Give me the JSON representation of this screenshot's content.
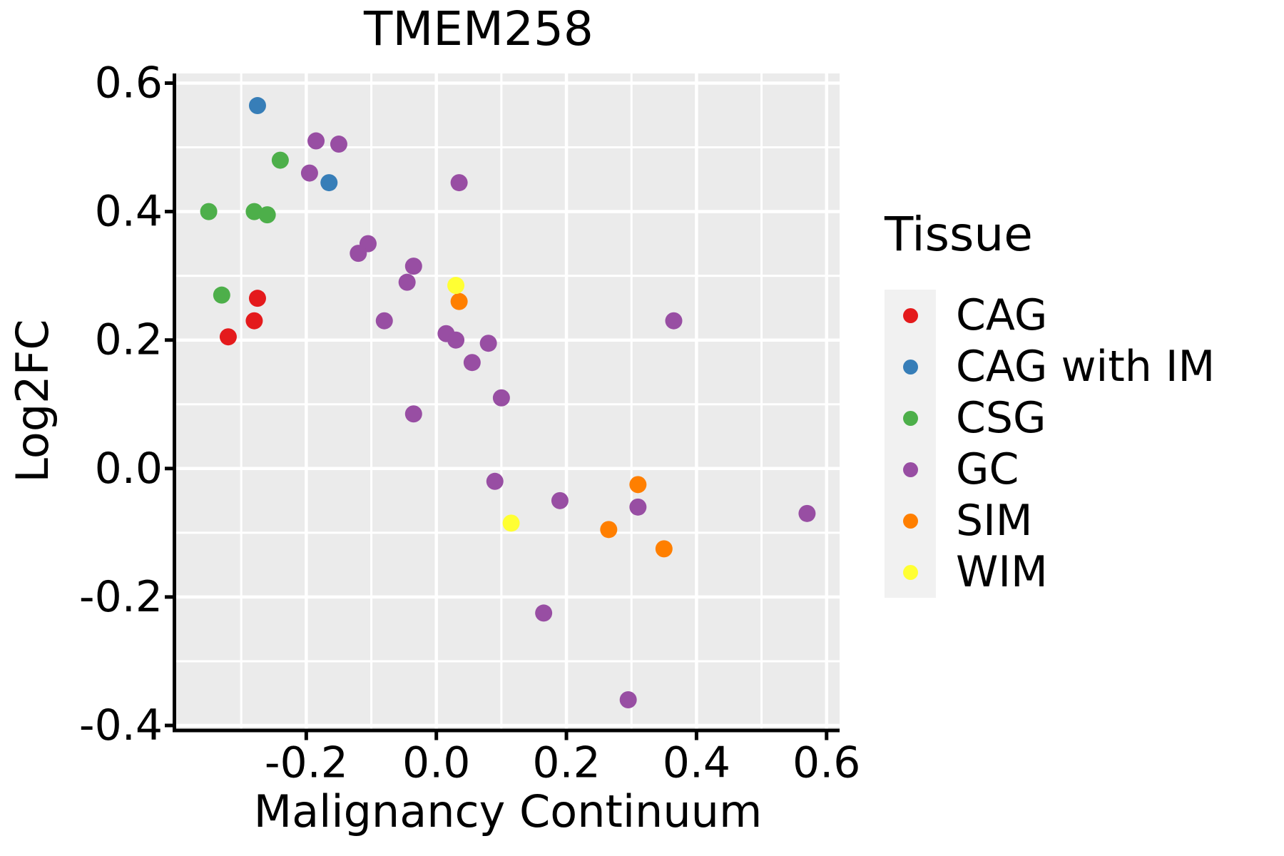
{
  "chart_data": {
    "type": "scatter",
    "title": "TMEM258",
    "xlabel": "Malignancy Continuum",
    "ylabel": "Log2FC",
    "legend_title": "Tissue",
    "legend_position": "right",
    "grid": true,
    "panel_background": "#ebebeb",
    "grid_color": "#ffffff",
    "legend_key_background": "#f1f1f1",
    "axis_color": "#000000",
    "xlim": [
      -0.4,
      0.62
    ],
    "ylim": [
      -0.405,
      0.615
    ],
    "x_ticks": [
      -0.2,
      0.0,
      0.2,
      0.4,
      0.6
    ],
    "x_tick_labels": [
      "-0.2",
      "0.0",
      "0.2",
      "0.4",
      "0.6"
    ],
    "y_ticks": [
      0.6,
      0.4,
      0.2,
      0.0,
      -0.2,
      -0.4
    ],
    "y_tick_labels": [
      "0.6",
      "0.4",
      "0.2",
      "0.0",
      "-0.2",
      "-0.4"
    ],
    "minor_grid_step": 0.1,
    "point_radius": 12,
    "series": [
      {
        "name": "CAG",
        "color": "#e41a1c",
        "points": [
          [
            -0.275,
            0.265
          ],
          [
            -0.28,
            0.23
          ],
          [
            -0.32,
            0.205
          ]
        ]
      },
      {
        "name": "CAG with IM",
        "color": "#377eb8",
        "points": [
          [
            -0.275,
            0.565
          ],
          [
            -0.165,
            0.445
          ]
        ]
      },
      {
        "name": "CSG",
        "color": "#4daf4a",
        "points": [
          [
            -0.24,
            0.48
          ],
          [
            -0.35,
            0.4
          ],
          [
            -0.28,
            0.4
          ],
          [
            -0.26,
            0.395
          ],
          [
            -0.33,
            0.27
          ]
        ]
      },
      {
        "name": "GC",
        "color": "#984ea3",
        "points": [
          [
            -0.185,
            0.51
          ],
          [
            -0.15,
            0.505
          ],
          [
            -0.195,
            0.46
          ],
          [
            0.035,
            0.445
          ],
          [
            -0.105,
            0.35
          ],
          [
            -0.12,
            0.335
          ],
          [
            -0.035,
            0.315
          ],
          [
            -0.045,
            0.29
          ],
          [
            -0.08,
            0.23
          ],
          [
            0.365,
            0.23
          ],
          [
            0.015,
            0.21
          ],
          [
            0.03,
            0.2
          ],
          [
            0.08,
            0.195
          ],
          [
            0.055,
            0.165
          ],
          [
            0.1,
            0.11
          ],
          [
            -0.035,
            0.085
          ],
          [
            0.09,
            -0.02
          ],
          [
            0.19,
            -0.05
          ],
          [
            0.31,
            -0.06
          ],
          [
            0.57,
            -0.07
          ],
          [
            0.165,
            -0.225
          ],
          [
            0.295,
            -0.36
          ]
        ]
      },
      {
        "name": "SIM",
        "color": "#ff7f00",
        "points": [
          [
            0.035,
            0.26
          ],
          [
            0.31,
            -0.025
          ],
          [
            0.265,
            -0.095
          ],
          [
            0.35,
            -0.125
          ]
        ]
      },
      {
        "name": "WIM",
        "color": "#ffff33",
        "points": [
          [
            0.03,
            0.285
          ],
          [
            0.115,
            -0.085
          ]
        ]
      }
    ]
  }
}
